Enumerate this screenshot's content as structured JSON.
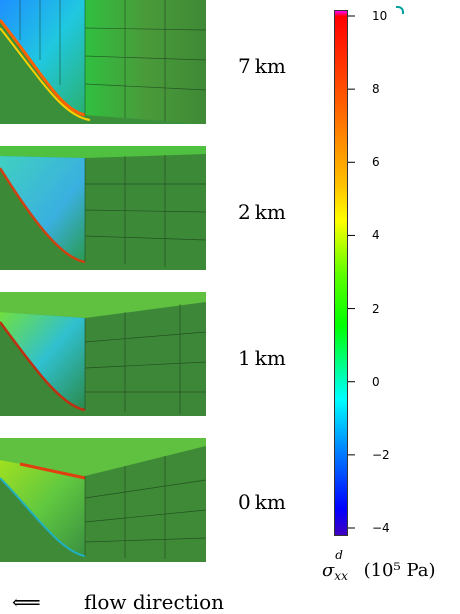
{
  "panels": [
    {
      "label": "7 km"
    },
    {
      "label": "2 km"
    },
    {
      "label": "1 km"
    },
    {
      "label": "0 km"
    }
  ],
  "colorbar": {
    "min": -4,
    "max": 10,
    "ticks": [
      "10",
      "8",
      "6",
      "4",
      "2",
      "0",
      "−2",
      "−4"
    ],
    "tick_values": [
      10,
      8,
      6,
      4,
      2,
      0,
      -2,
      -4
    ],
    "label_symbol": "σ",
    "label_sup": "d",
    "label_sub": "xx",
    "label_units": "(10⁵ Pa)",
    "colors": [
      "#ff00ff",
      "#ff0000",
      "#ff6000",
      "#ffc000",
      "#ffff00",
      "#60ff00",
      "#00ff00",
      "#00ff80",
      "#00ffff",
      "#0080ff",
      "#0000ff",
      "#4000c0"
    ]
  },
  "flow": {
    "arrow": "⟸",
    "text": "flow direction"
  }
}
